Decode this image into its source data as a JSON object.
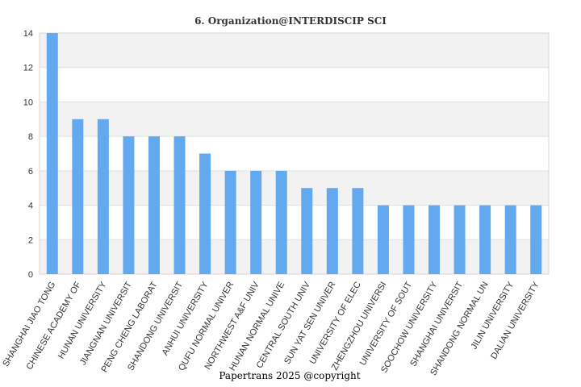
{
  "chart_data": {
    "type": "bar",
    "title": "6. Organization@INTERDISCIP SCI",
    "xlabel": "",
    "ylabel": "",
    "ylim": [
      0,
      14
    ],
    "yticks": [
      0,
      2,
      4,
      6,
      8,
      10,
      12,
      14
    ],
    "grid": "horizontal bands",
    "categories": [
      "SHANGHAI JIAO TONG",
      "CHINESE ACADEMY OF",
      "HUNAN UNIVERSITY",
      "JIANGNAN UNIVERSIT",
      "PENG CHENG LABORAT",
      "SHANDONG UNIVERSIT",
      "ANHUI UNIVERSITY",
      "QUFU NORMAL UNIVER",
      "NORTHWEST A&F UNIV",
      "HUNAN NORMAL UNIVE",
      "CENTRAL SOUTH UNIV",
      "SUN YAT SEN UNIVER",
      "UNIVERSITY OF ELEC",
      "ZHENGZHOU UNIVERSI",
      "UNIVERSITY OF SOUT",
      "SOOCHOW UNIVERSITY",
      "SHANGHAI UNIVERSIT",
      "SHANDONG NORMAL UN",
      "JILIN UNIVERSITY",
      "DALIAN UNIVERSITY"
    ],
    "values": [
      14,
      9,
      9,
      8,
      8,
      8,
      7,
      6,
      6,
      6,
      5,
      5,
      5,
      4,
      4,
      4,
      4,
      4,
      4,
      4
    ],
    "colors": {
      "bar": "#63a9ef",
      "band": "#f2f2f2",
      "gridline": "#e0e0e0",
      "axis": "#d6d6d6",
      "text": "#333333"
    }
  },
  "footer": {
    "copyright": "Papertrans 2025 @copyright"
  }
}
